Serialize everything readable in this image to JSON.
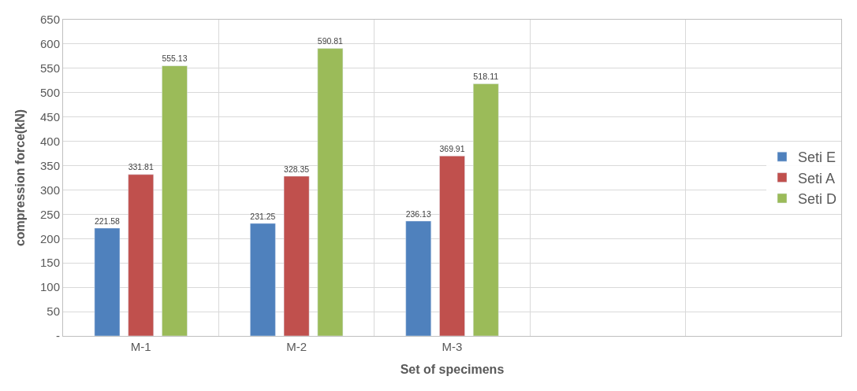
{
  "chart_data": {
    "type": "bar",
    "xlabel": "Set of specimens",
    "ylabel": "compression force(kN)",
    "categories": [
      "M-1",
      "M-2",
      "M-3",
      null,
      null
    ],
    "series": [
      {
        "name": "Seti E",
        "color": "#4f81bd",
        "values": [
          221.58,
          231.25,
          236.13,
          null,
          null
        ]
      },
      {
        "name": "Seti A",
        "color": "#c0504d",
        "values": [
          331.81,
          328.35,
          369.91,
          null,
          null
        ]
      },
      {
        "name": "Seti D",
        "color": "#9bbb59",
        "values": [
          555.13,
          590.81,
          518.11,
          null,
          null
        ]
      }
    ],
    "ylim": [
      0,
      650
    ],
    "yticks": [
      {
        "value": 0,
        "label": "-"
      },
      50,
      100,
      150,
      200,
      250,
      300,
      350,
      400,
      450,
      500,
      550,
      600,
      650
    ],
    "grid": true,
    "legend": "right",
    "data_labels": true
  }
}
